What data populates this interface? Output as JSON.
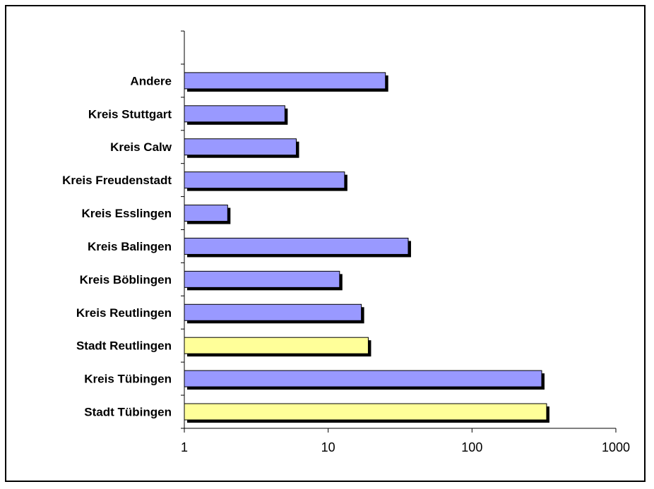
{
  "chart_data": {
    "type": "bar",
    "orientation": "horizontal",
    "x_scale": "log",
    "xlim": [
      1,
      1000
    ],
    "x_ticks": [
      "1",
      "10",
      "100",
      "1000"
    ],
    "categories": [
      "Stadt Tübingen",
      "Kreis Tübingen",
      "Stadt Reutlingen",
      "Kreis Reutlingen",
      "Kreis Böblingen",
      "Kreis Balingen",
      "Kreis Esslingen",
      "Kreis Freudenstadt",
      "Kreis Calw",
      "Kreis Stuttgart",
      "Andere"
    ],
    "values": [
      330,
      305,
      19,
      17,
      12,
      36,
      2,
      13,
      6,
      5,
      25
    ],
    "bar_colors": [
      "#ffff99",
      "#9999ff",
      "#ffff99",
      "#9999ff",
      "#9999ff",
      "#9999ff",
      "#9999ff",
      "#9999ff",
      "#9999ff",
      "#9999ff",
      "#9999ff"
    ],
    "shadow_color": "#000000",
    "grid": false,
    "legend": "none",
    "title": "",
    "xlabel": "",
    "ylabel": ""
  }
}
